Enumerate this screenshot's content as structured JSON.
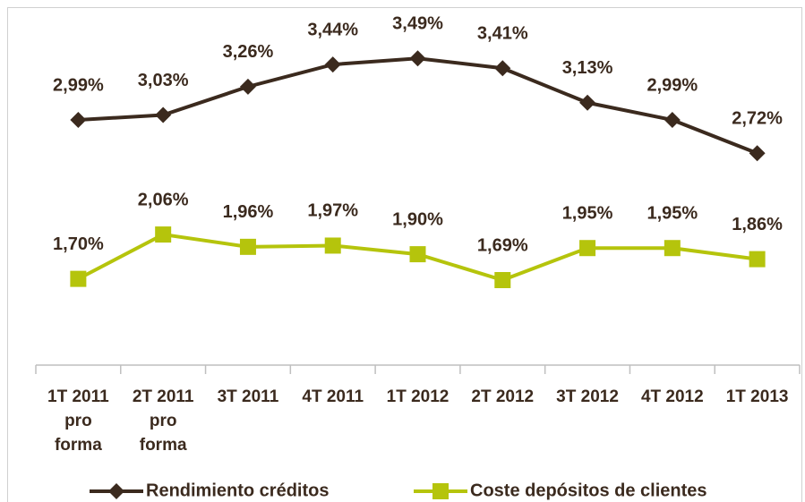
{
  "chart_data": {
    "type": "line",
    "categories": [
      "1T 2011 pro forma",
      "2T 2011 pro forma",
      "3T 2011",
      "4T 2011",
      "1T 2012",
      "2T 2012",
      "3T 2012",
      "4T 2012",
      "1T 2013"
    ],
    "series": [
      {
        "name": "Rendimiento créditos",
        "color": "#3b2a1e",
        "marker": "diamond",
        "values": [
          2.99,
          3.03,
          3.26,
          3.44,
          3.49,
          3.41,
          3.13,
          2.99,
          2.72
        ],
        "value_labels": [
          "2,99%",
          "3,03%",
          "3,26%",
          "3,44%",
          "3,49%",
          "3,41%",
          "3,13%",
          "2,99%",
          "2,72%"
        ]
      },
      {
        "name": "Coste depósitos de clientes",
        "color": "#b5c40c",
        "marker": "square",
        "values": [
          1.7,
          2.06,
          1.96,
          1.97,
          1.9,
          1.69,
          1.95,
          1.95,
          1.86
        ],
        "value_labels": [
          "1,70%",
          "2,06%",
          "1,96%",
          "1,97%",
          "1,90%",
          "1,69%",
          "1,95%",
          "1,95%",
          "1,86%"
        ]
      }
    ],
    "ylim": [
      1,
      4
    ],
    "legend": "bottom"
  }
}
